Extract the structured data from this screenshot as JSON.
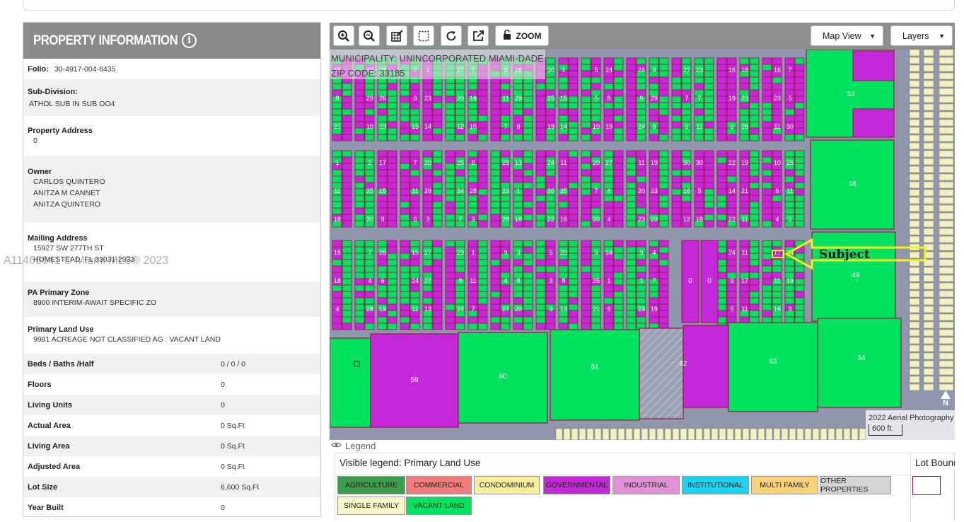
{
  "panel": {
    "title": "PROPERTY INFORMATION",
    "info_icon": "info-circle-icon",
    "folio_label": "Folio:",
    "folio_value": "30-4917-004-8435",
    "subdivision_label": "Sub-Division:",
    "subdivision_value": "ATHOL SUB IN SUB OO4",
    "address_label": "Property Address",
    "address_value": "0",
    "owner_label": "Owner",
    "owners": [
      "CARLOS QUINTERO",
      "ANITZA M CANNET",
      "ANITZA QUINTERO"
    ],
    "mailing_label": "Mailing Address",
    "mailing_lines": [
      "15927 SW 277TH ST",
      "HOMESTEAD, FL 33031-2933"
    ],
    "zone_label": "PA Primary Zone",
    "zone_value": "8900 INTERIM-AWAIT SPECIFIC ZO",
    "landuse_label": "Primary Land Use",
    "landuse_value": "9981 ACREAGE NOT CLASSIFIED AG : VACANT LAND",
    "facts": [
      {
        "label": "Beds / Baths /Half",
        "value": "0 / 0 / 0"
      },
      {
        "label": "Floors",
        "value": "0"
      },
      {
        "label": "Living Units",
        "value": "0"
      },
      {
        "label": "Actual Area",
        "value": "0 Sq.Ft"
      },
      {
        "label": "Living Area",
        "value": "0 Sq.Ft"
      },
      {
        "label": "Adjusted Area",
        "value": "0 Sq.Ft"
      },
      {
        "label": "Lot Size",
        "value": "6,600 Sq.Ft"
      },
      {
        "label": "Year Built",
        "value": "0"
      }
    ]
  },
  "watermark": "A11460041 © Miami MLS® 2023",
  "toolbar": {
    "tools": [
      "zoom-in-icon",
      "zoom-out-icon",
      "edit-grid-icon",
      "select-box-icon",
      "refresh-icon",
      "external-link-icon"
    ],
    "zoom_label": "ZOOM",
    "lock_icon": "unlock-icon",
    "map_view_label": "Map View",
    "layers_label": "Layers"
  },
  "map": {
    "municipality": "MUNICIPALITY: UNINCORPORATED MIAMI-DADE",
    "zip": "ZIP CODE: 33185",
    "subject_label": "Subject",
    "aerial_label": "2022 Aerial Photography",
    "scale_label": "600 ft",
    "north_label": "N",
    "big_lots": [
      "33",
      "48",
      "49",
      "59",
      "60",
      "61",
      "62",
      "63",
      "64",
      "0",
      "0"
    ],
    "colors": {
      "vacant": "#00e35f",
      "governmental": "#c428d8",
      "single_family": "#f4f0c4",
      "road": "#8f97ac",
      "lot_border": "#a0104a",
      "subject_arrow": "#f5f01e"
    }
  },
  "legend": {
    "toggle_label": "Legend",
    "eye_icon": "eye-icon",
    "visible_title": "Visible legend: Primary Land Use",
    "lot_title": "Lot Boundaries",
    "items": [
      {
        "label": "AGRICULTURE",
        "color": "#3b9e4a"
      },
      {
        "label": "COMMERCIAL",
        "color": "#f47b7b"
      },
      {
        "label": "CONDOMINIUM",
        "color": "#f9ee9a"
      },
      {
        "label": "GOVERNMENTAL",
        "color": "#c428d8"
      },
      {
        "label": "INDUSTRIAL",
        "color": "#e291d8"
      },
      {
        "label": "INSTITUTIONAL",
        "color": "#19d4f2"
      },
      {
        "label": "MULTI FAMILY",
        "color": "#fbd27a"
      },
      {
        "label": "OTHER PROPERTIES",
        "color": "#d4d4d4"
      },
      {
        "label": "SINGLE FAMILY",
        "color": "#f8f6c8"
      },
      {
        "label": "VACANT LAND",
        "color": "#00e35f"
      }
    ]
  }
}
